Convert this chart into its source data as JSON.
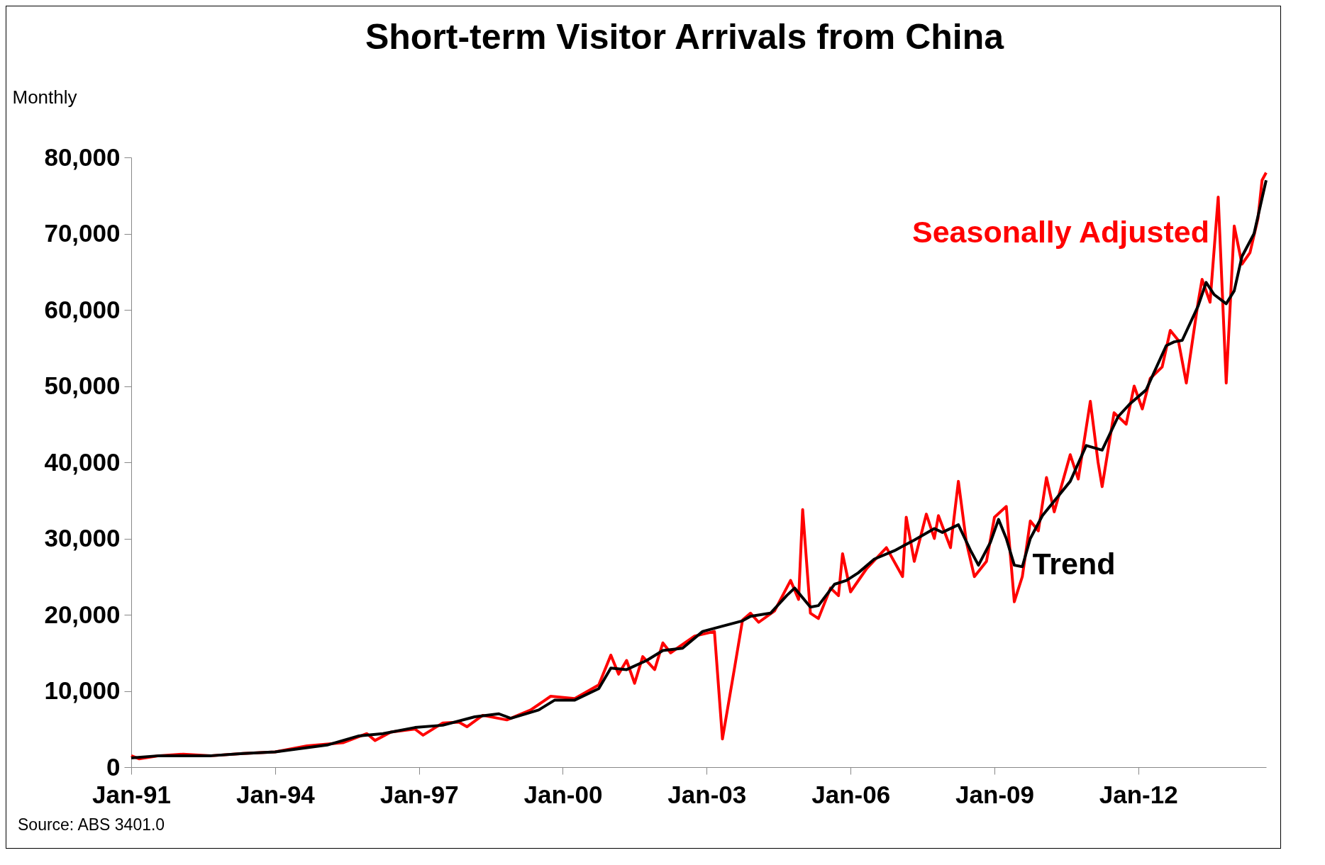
{
  "chart_data": {
    "type": "line",
    "title": "Short-term Visitor Arrivals from China",
    "ylabel": "Monthly",
    "annotations": [
      "Source:  ABS 3401.0"
    ],
    "legend": false,
    "xlim": [
      "1991-01",
      "2014-09"
    ],
    "xticks": [
      {
        "value": "1991-01",
        "label": "Jan-91"
      },
      {
        "value": "1994-01",
        "label": "Jan-94"
      },
      {
        "value": "1997-01",
        "label": "Jan-97"
      },
      {
        "value": "2000-01",
        "label": "Jan-00"
      },
      {
        "value": "2003-01",
        "label": "Jan-03"
      },
      {
        "value": "2006-01",
        "label": "Jan-06"
      },
      {
        "value": "2009-01",
        "label": "Jan-09"
      },
      {
        "value": "2012-01",
        "label": "Jan-12"
      }
    ],
    "ylim": [
      0,
      80000
    ],
    "yticks": [
      {
        "value": 0,
        "label": "0"
      },
      {
        "value": 10000,
        "label": "10,000"
      },
      {
        "value": 20000,
        "label": "20,000"
      },
      {
        "value": 30000,
        "label": "30,000"
      },
      {
        "value": 40000,
        "label": "40,000"
      },
      {
        "value": 50000,
        "label": "50,000"
      },
      {
        "value": 60000,
        "label": "60,000"
      },
      {
        "value": 70000,
        "label": "70,000"
      },
      {
        "value": 80000,
        "label": "80,000"
      }
    ],
    "series": [
      {
        "name": "Seasonally Adjusted",
        "color": "#ff0000",
        "x": [
          "1991-01",
          "1991-03",
          "1991-08",
          "1992-02",
          "1992-09",
          "1993-05",
          "1994-01",
          "1994-09",
          "1995-06",
          "1995-12",
          "1996-02",
          "1996-06",
          "1996-12",
          "1997-02",
          "1997-07",
          "1997-11",
          "1998-01",
          "1998-05",
          "1998-11",
          "1999-05",
          "1999-10",
          "2000-04",
          "2000-10",
          "2001-01",
          "2001-03",
          "2001-05",
          "2001-07",
          "2001-09",
          "2001-12",
          "2002-02",
          "2002-04",
          "2002-10",
          "2003-03",
          "2003-05",
          "2003-08",
          "2003-10",
          "2003-12",
          "2004-02",
          "2004-06",
          "2004-10",
          "2004-12",
          "2005-01",
          "2005-03",
          "2005-05",
          "2005-08",
          "2005-10",
          "2005-11",
          "2006-01",
          "2006-05",
          "2006-10",
          "2007-02",
          "2007-03",
          "2007-05",
          "2007-08",
          "2007-10",
          "2007-11",
          "2008-02",
          "2008-04",
          "2008-06",
          "2008-08",
          "2008-11",
          "2009-01",
          "2009-04",
          "2009-06",
          "2009-08",
          "2009-10",
          "2009-12",
          "2010-02",
          "2010-04",
          "2010-08",
          "2010-10",
          "2011-01",
          "2011-03",
          "2011-04",
          "2011-07",
          "2011-10",
          "2011-12",
          "2012-02",
          "2012-04",
          "2012-07",
          "2012-09",
          "2012-11",
          "2013-01",
          "2013-04",
          "2013-05",
          "2013-07",
          "2013-09",
          "2013-11",
          "2014-01",
          "2014-03",
          "2014-05",
          "2014-07",
          "2014-08",
          "2014-09"
        ],
        "values": [
          1500,
          1100,
          1500,
          1700,
          1500,
          1800,
          2000,
          2800,
          3200,
          4400,
          3500,
          4600,
          5000,
          4200,
          5800,
          5900,
          5300,
          6800,
          6200,
          7500,
          9300,
          9000,
          10800,
          14700,
          12200,
          14000,
          11000,
          14500,
          12800,
          16300,
          15000,
          17200,
          17800,
          3700,
          13000,
          19300,
          20200,
          19000,
          20500,
          24500,
          22000,
          33800,
          20200,
          19500,
          23500,
          22500,
          28000,
          23000,
          26000,
          28800,
          25000,
          32800,
          27000,
          33200,
          30000,
          33000,
          28800,
          37500,
          29500,
          25000,
          27000,
          32800,
          34200,
          21700,
          25000,
          32300,
          31000,
          38000,
          33500,
          41000,
          37800,
          48000,
          40000,
          36800,
          46500,
          45000,
          50000,
          47000,
          51000,
          52500,
          57300,
          56000,
          50400,
          61000,
          64000,
          61000,
          74800,
          50400,
          71000,
          66000,
          67500,
          72000,
          77000,
          78000
        ]
      },
      {
        "name": "Trend",
        "color": "#000000",
        "x": [
          "1991-01",
          "1991-08",
          "1992-09",
          "1993-05",
          "1994-01",
          "1995-02",
          "1995-10",
          "1996-04",
          "1996-12",
          "1997-07",
          "1998-03",
          "1998-09",
          "1998-12",
          "1999-07",
          "1999-11",
          "2000-04",
          "2000-10",
          "2001-01",
          "2001-05",
          "2001-10",
          "2002-02",
          "2002-07",
          "2002-12",
          "2003-05",
          "2003-10",
          "2003-12",
          "2004-05",
          "2004-09",
          "2004-11",
          "2005-03",
          "2005-05",
          "2005-09",
          "2005-12",
          "2006-03",
          "2006-07",
          "2006-12",
          "2007-05",
          "2007-10",
          "2007-12",
          "2008-04",
          "2008-07",
          "2008-09",
          "2008-12",
          "2009-02",
          "2009-04",
          "2009-06",
          "2009-08",
          "2009-10",
          "2010-01",
          "2010-08",
          "2010-12",
          "2011-04",
          "2011-08",
          "2011-11",
          "2012-03",
          "2012-08",
          "2012-10",
          "2012-12",
          "2013-04",
          "2013-06",
          "2013-08",
          "2013-11",
          "2014-01",
          "2014-03",
          "2014-06",
          "2014-09"
        ],
        "values": [
          1200,
          1500,
          1500,
          1800,
          2000,
          2900,
          4100,
          4400,
          5200,
          5500,
          6600,
          7000,
          6400,
          7500,
          8800,
          8800,
          10300,
          13000,
          12800,
          14000,
          15300,
          15600,
          17800,
          18500,
          19200,
          19800,
          20200,
          22500,
          23500,
          21000,
          21200,
          24000,
          24500,
          25500,
          27300,
          28400,
          29800,
          31300,
          30800,
          31800,
          28500,
          26500,
          29500,
          32500,
          30000,
          26500,
          26300,
          30000,
          33000,
          37500,
          42200,
          41600,
          46000,
          47700,
          49500,
          55300,
          55800,
          56000,
          60500,
          63600,
          62000,
          60800,
          62500,
          67000,
          70000,
          77000
        ]
      }
    ]
  }
}
